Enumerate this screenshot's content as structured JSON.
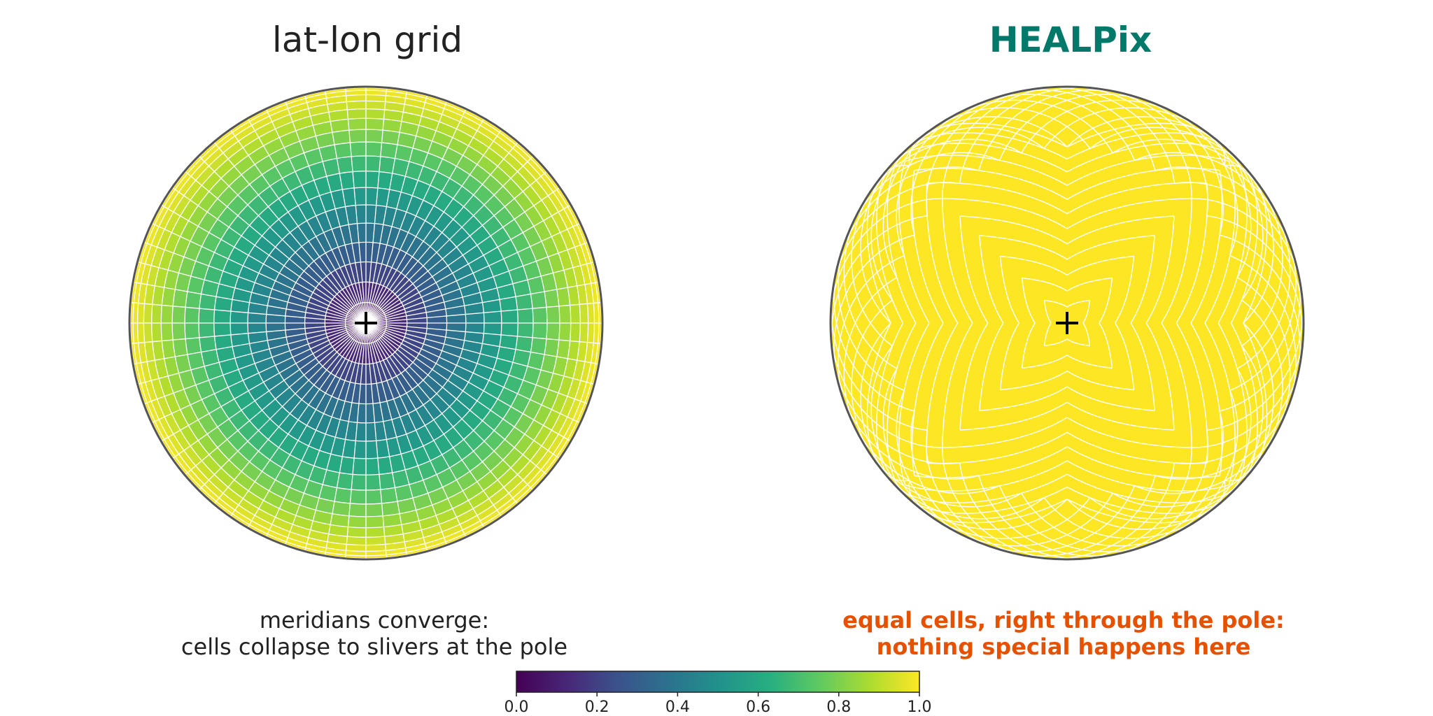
{
  "panels": {
    "left": {
      "title": "lat-lon grid",
      "caption_line1": "meridians converge:",
      "caption_line2": "cells collapse to slivers at the pole"
    },
    "right": {
      "title": "HEALPix",
      "caption_line1": "equal cells, right through the pole:",
      "caption_line2": "nothing special happens here"
    }
  },
  "colorbar": {
    "colormap": "viridis",
    "range": [
      0.0,
      1.0
    ],
    "ticks": [
      "0.0",
      "0.2",
      "0.4",
      "0.6",
      "0.8",
      "1.0"
    ]
  },
  "colors": {
    "title_right": "#00796b",
    "caption_right": "#e65100",
    "healpix_fill": "#fde725",
    "grid_lines": "#ffffff",
    "outline": "#555555",
    "pole_marker": "#000000"
  },
  "icons": {
    "pole_marker": "plus-icon"
  }
}
